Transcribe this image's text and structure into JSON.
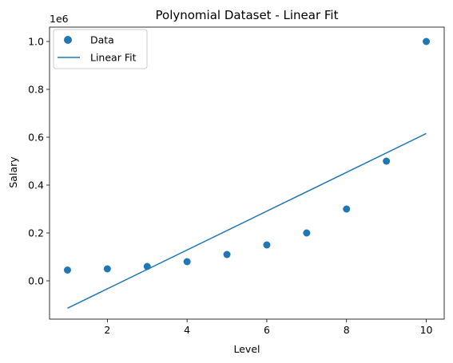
{
  "chart_data": {
    "type": "scatter",
    "title": "Polynomial Dataset - Linear Fit",
    "xlabel": "Level",
    "ylabel": "Salary",
    "offset_text": "1e6",
    "xlim": [
      0.55,
      10.45
    ],
    "ylim": [
      -0.16,
      1.06
    ],
    "x_ticks": [
      2,
      4,
      6,
      8,
      10
    ],
    "x_tick_labels": [
      "2",
      "4",
      "6",
      "8",
      "10"
    ],
    "y_ticks": [
      0.0,
      0.2,
      0.4,
      0.6,
      0.8,
      1.0
    ],
    "y_tick_labels": [
      "0.0",
      "0.2",
      "0.4",
      "0.6",
      "0.8",
      "1.0"
    ],
    "grid": false,
    "legend_position": "top-left",
    "series": [
      {
        "name": "Data",
        "kind": "scatter",
        "color": "#1f77b4",
        "x": [
          1,
          2,
          3,
          4,
          5,
          6,
          7,
          8,
          9,
          10
        ],
        "y": [
          0.045,
          0.05,
          0.06,
          0.08,
          0.11,
          0.15,
          0.2,
          0.3,
          0.5,
          1.0
        ]
      },
      {
        "name": "Linear Fit",
        "kind": "line",
        "color": "#1f77b4",
        "x": [
          1,
          10
        ],
        "y": [
          -0.1145,
          0.6155
        ]
      }
    ]
  }
}
